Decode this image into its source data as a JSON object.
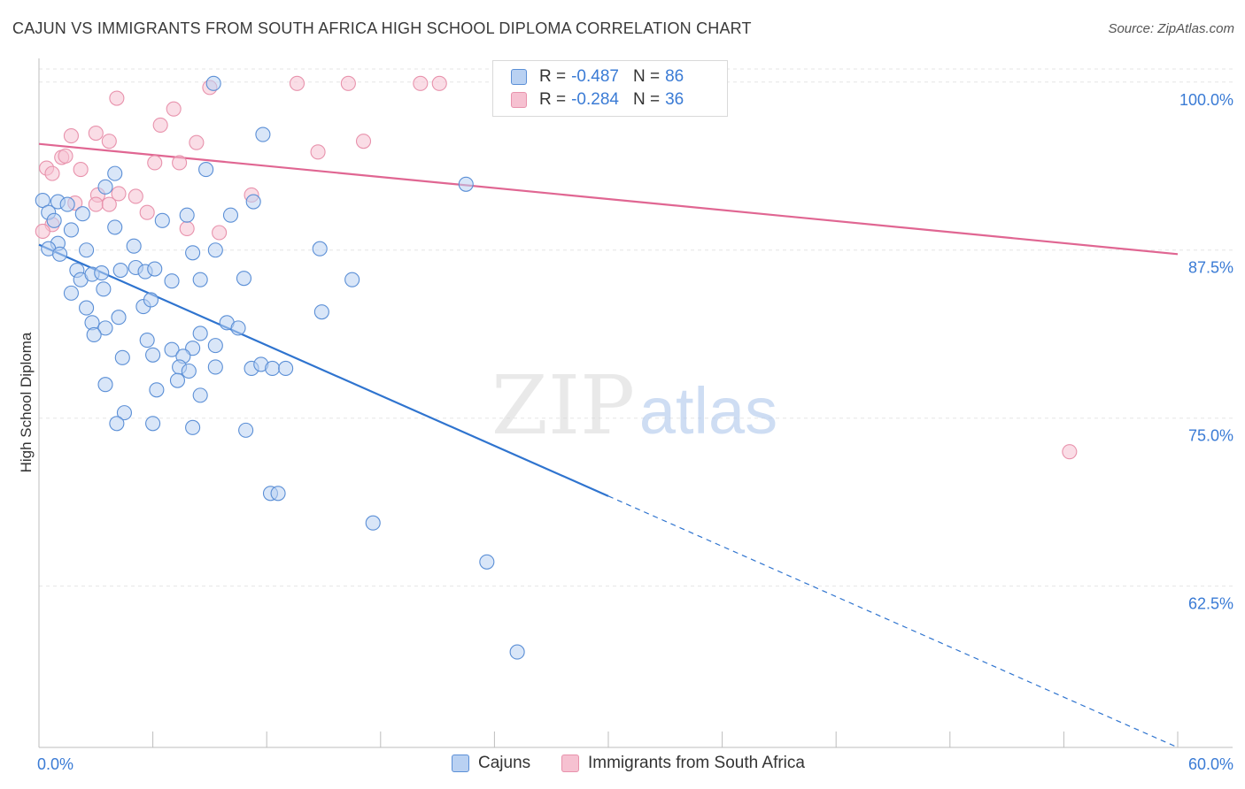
{
  "title": "CAJUN VS IMMIGRANTS FROM SOUTH AFRICA HIGH SCHOOL DIPLOMA CORRELATION CHART",
  "source": "Source: ZipAtlas.com",
  "watermark": {
    "zip": "ZIP",
    "atlas": "atlas"
  },
  "colors": {
    "blue_fill": "#b9d1f2",
    "blue_stroke": "#5b8fd6",
    "blue_line": "#2f74cf",
    "pink_fill": "#f6c1d1",
    "pink_stroke": "#e892ac",
    "pink_line": "#e06692",
    "tick_label": "#3a7bd5"
  },
  "legend": {
    "rows": [
      {
        "r_label": "R =",
        "r_value": "-0.487",
        "n_label": "N =",
        "n_value": "86"
      },
      {
        "r_label": "R =",
        "r_value": "-0.284",
        "n_label": "N =",
        "n_value": "36"
      }
    ]
  },
  "bottom_legend": [
    "Cajuns",
    "Immigrants from South Africa"
  ],
  "chart_data": {
    "type": "scatter",
    "ylabel": "High School Diploma",
    "xlim": [
      0,
      60
    ],
    "ylim": [
      50.5,
      101.5
    ],
    "x_tick_labels": [
      "0.0%",
      "60.0%"
    ],
    "y_ticks": [
      62.5,
      75.0,
      87.5,
      100.0
    ],
    "y_tick_labels": [
      "62.5%",
      "75.0%",
      "87.5%",
      "100.0%"
    ],
    "grid": true,
    "legend_position": "top-center",
    "series": [
      {
        "name": "Cajuns",
        "trend": {
          "x_start": 0,
          "y_start": 87.9,
          "x_solid_end": 30,
          "x_end": 60,
          "y_end": 50.5
        },
        "points": [
          [
            9.2,
            99.9
          ],
          [
            11.8,
            96.1
          ],
          [
            22.5,
            92.4
          ],
          [
            8.8,
            93.5
          ],
          [
            4.0,
            93.2
          ],
          [
            0.2,
            91.2
          ],
          [
            1.0,
            91.1
          ],
          [
            1.5,
            90.9
          ],
          [
            3.5,
            92.2
          ],
          [
            7.8,
            90.1
          ],
          [
            10.1,
            90.1
          ],
          [
            11.3,
            91.1
          ],
          [
            0.5,
            90.3
          ],
          [
            0.8,
            89.7
          ],
          [
            1.7,
            89.0
          ],
          [
            2.3,
            90.2
          ],
          [
            4.0,
            89.2
          ],
          [
            6.5,
            89.7
          ],
          [
            1.0,
            88.0
          ],
          [
            0.5,
            87.6
          ],
          [
            1.1,
            87.2
          ],
          [
            2.5,
            87.5
          ],
          [
            5.0,
            87.8
          ],
          [
            8.1,
            87.3
          ],
          [
            9.3,
            87.5
          ],
          [
            14.8,
            87.6
          ],
          [
            2.0,
            86.0
          ],
          [
            4.3,
            86.0
          ],
          [
            5.1,
            86.2
          ],
          [
            5.6,
            85.9
          ],
          [
            6.1,
            86.1
          ],
          [
            2.2,
            85.3
          ],
          [
            2.8,
            85.7
          ],
          [
            3.3,
            85.8
          ],
          [
            7.0,
            85.2
          ],
          [
            8.5,
            85.3
          ],
          [
            10.8,
            85.4
          ],
          [
            16.5,
            85.3
          ],
          [
            1.7,
            84.3
          ],
          [
            3.4,
            84.6
          ],
          [
            5.5,
            83.3
          ],
          [
            5.9,
            83.8
          ],
          [
            2.5,
            83.2
          ],
          [
            4.2,
            82.5
          ],
          [
            14.9,
            82.9
          ],
          [
            2.8,
            82.1
          ],
          [
            3.5,
            81.7
          ],
          [
            2.9,
            81.2
          ],
          [
            9.9,
            82.1
          ],
          [
            10.5,
            81.7
          ],
          [
            8.5,
            81.3
          ],
          [
            5.7,
            80.8
          ],
          [
            8.1,
            80.2
          ],
          [
            9.3,
            80.4
          ],
          [
            4.4,
            79.5
          ],
          [
            6.0,
            79.7
          ],
          [
            7.0,
            80.1
          ],
          [
            7.6,
            79.6
          ],
          [
            7.4,
            78.8
          ],
          [
            7.9,
            78.5
          ],
          [
            9.3,
            78.8
          ],
          [
            11.2,
            78.7
          ],
          [
            11.7,
            79.0
          ],
          [
            12.3,
            78.7
          ],
          [
            13.0,
            78.7
          ],
          [
            3.5,
            77.5
          ],
          [
            6.2,
            77.1
          ],
          [
            7.3,
            77.8
          ],
          [
            8.5,
            76.7
          ],
          [
            4.5,
            75.4
          ],
          [
            4.1,
            74.6
          ],
          [
            6.0,
            74.6
          ],
          [
            8.1,
            74.3
          ],
          [
            10.9,
            74.1
          ],
          [
            12.2,
            69.4
          ],
          [
            12.6,
            69.4
          ],
          [
            17.6,
            67.2
          ],
          [
            23.6,
            64.3
          ],
          [
            25.2,
            57.6
          ]
        ]
      },
      {
        "name": "Immigrants from South Africa",
        "trend": {
          "x_start": 0,
          "y_start": 95.4,
          "x_end": 60,
          "y_end": 87.2
        },
        "points": [
          [
            13.6,
            99.9
          ],
          [
            16.3,
            99.9
          ],
          [
            20.1,
            99.9
          ],
          [
            21.1,
            99.9
          ],
          [
            9.0,
            99.6
          ],
          [
            33.5,
            99.7
          ],
          [
            4.1,
            98.8
          ],
          [
            7.1,
            98.0
          ],
          [
            6.4,
            96.8
          ],
          [
            1.7,
            96.0
          ],
          [
            3.0,
            96.2
          ],
          [
            3.7,
            95.6
          ],
          [
            8.3,
            95.5
          ],
          [
            17.1,
            95.6
          ],
          [
            14.7,
            94.8
          ],
          [
            1.2,
            94.4
          ],
          [
            1.4,
            94.5
          ],
          [
            0.4,
            93.6
          ],
          [
            0.7,
            93.2
          ],
          [
            2.2,
            93.5
          ],
          [
            6.1,
            94.0
          ],
          [
            7.4,
            94.0
          ],
          [
            3.1,
            91.6
          ],
          [
            4.2,
            91.7
          ],
          [
            5.1,
            91.5
          ],
          [
            11.2,
            91.6
          ],
          [
            1.9,
            91.0
          ],
          [
            3.0,
            90.9
          ],
          [
            3.7,
            90.9
          ],
          [
            5.7,
            90.3
          ],
          [
            0.7,
            89.4
          ],
          [
            0.2,
            88.9
          ],
          [
            7.8,
            89.1
          ],
          [
            9.5,
            88.8
          ],
          [
            54.3,
            72.5
          ]
        ]
      }
    ]
  }
}
